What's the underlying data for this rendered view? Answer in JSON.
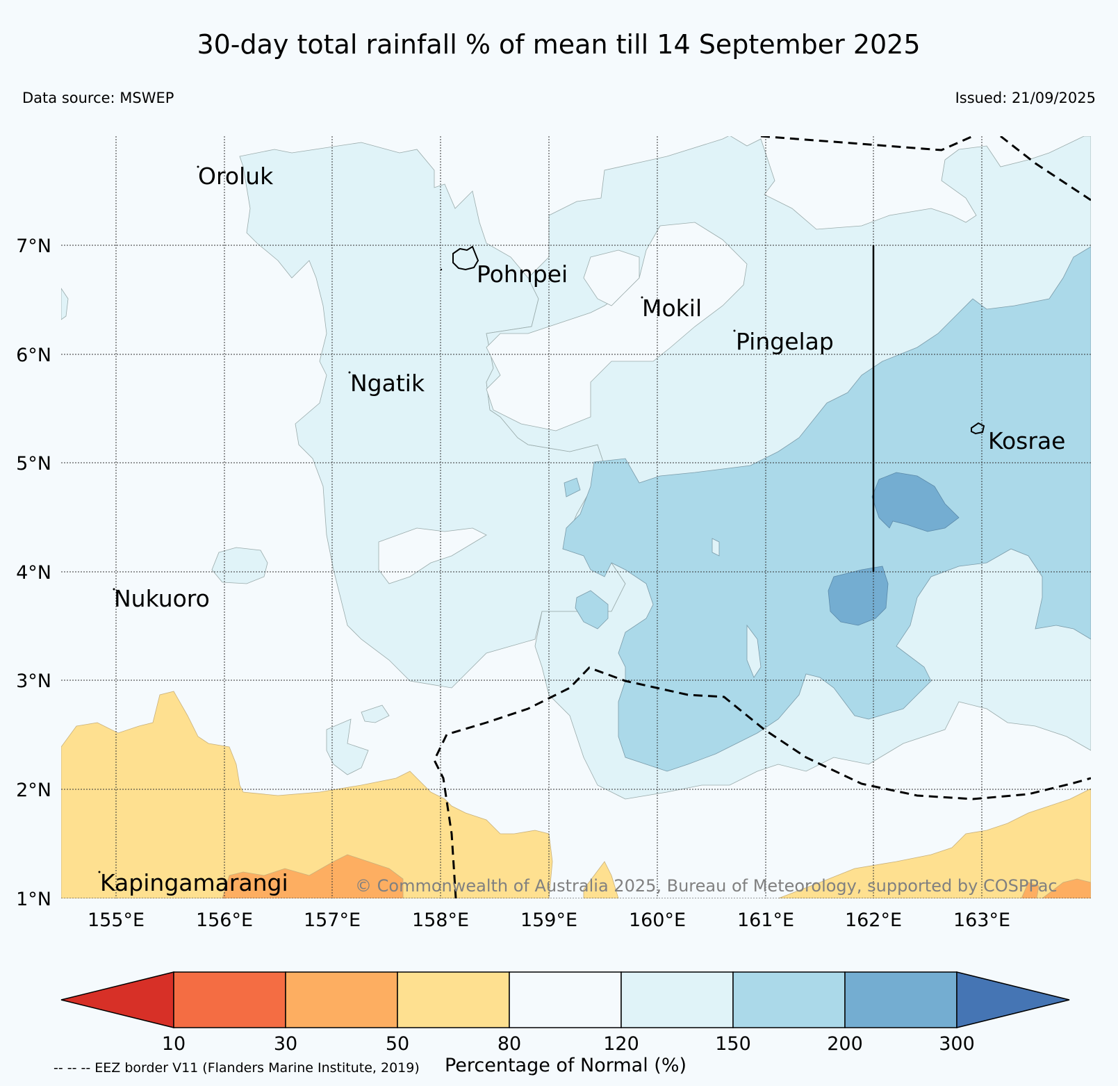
{
  "title": "30-day total rainfall % of mean till 14 September 2025",
  "data_source": "Data source: MSWEP",
  "issued": "Issued: 21/09/2025",
  "copyright": "© Commonwealth of Australia 2025, Bureau of Meteorology, supported by COSPPac",
  "eez_note": "-- -- -- EEZ border V11 (Flanders Marine Institute, 2019)",
  "colorbar": {
    "label": "Percentage of Normal (%)",
    "ticks": [
      "10",
      "30",
      "50",
      "80",
      "120",
      "150",
      "200",
      "300"
    ],
    "colors": {
      "below_10": "#d73027",
      "10_30": "#f46d43",
      "30_50": "#fdae61",
      "50_80": "#fee090",
      "80_120": "#f5fafd",
      "120_150": "#e0f3f8",
      "150_200": "#abd9e9",
      "200_300": "#74add1",
      "above_300": "#4575b4"
    }
  },
  "axes": {
    "lat_labels": [
      "7°N",
      "6°N",
      "5°N",
      "4°N",
      "3°N",
      "2°N",
      "1°N"
    ],
    "lon_labels": [
      "155°E",
      "156°E",
      "157°E",
      "158°E",
      "159°E",
      "160°E",
      "161°E",
      "162°E",
      "163°E"
    ]
  },
  "places": [
    {
      "name": "Oroluk"
    },
    {
      "name": "Pohnpei"
    },
    {
      "name": "Mokil"
    },
    {
      "name": "Pingelap"
    },
    {
      "name": "Ngatik"
    },
    {
      "name": "Kosrae"
    },
    {
      "name": "Nukuoro"
    },
    {
      "name": "Kapingamarangi"
    }
  ]
}
